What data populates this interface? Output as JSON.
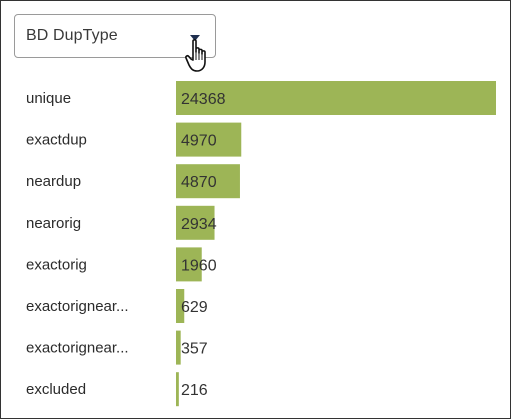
{
  "dropdown": {
    "selected": "BD DupType",
    "caret_icon": "caret-down-icon",
    "cursor_icon": "hand-pointer-icon"
  },
  "colors": {
    "bar": "#9db556",
    "caret": "#1f2f4f"
  },
  "chart_data": {
    "type": "bar",
    "orientation": "horizontal",
    "categories": [
      "unique",
      "exactdup",
      "neardup",
      "nearorig",
      "exactorig",
      "exactorignear...",
      "exactorignear...",
      "excluded"
    ],
    "values": [
      24368,
      4970,
      4870,
      2934,
      1960,
      629,
      357,
      216
    ],
    "title": "",
    "xlabel": "",
    "ylabel": "",
    "xlim": [
      0,
      24368
    ],
    "grid": false,
    "legend": "none"
  }
}
